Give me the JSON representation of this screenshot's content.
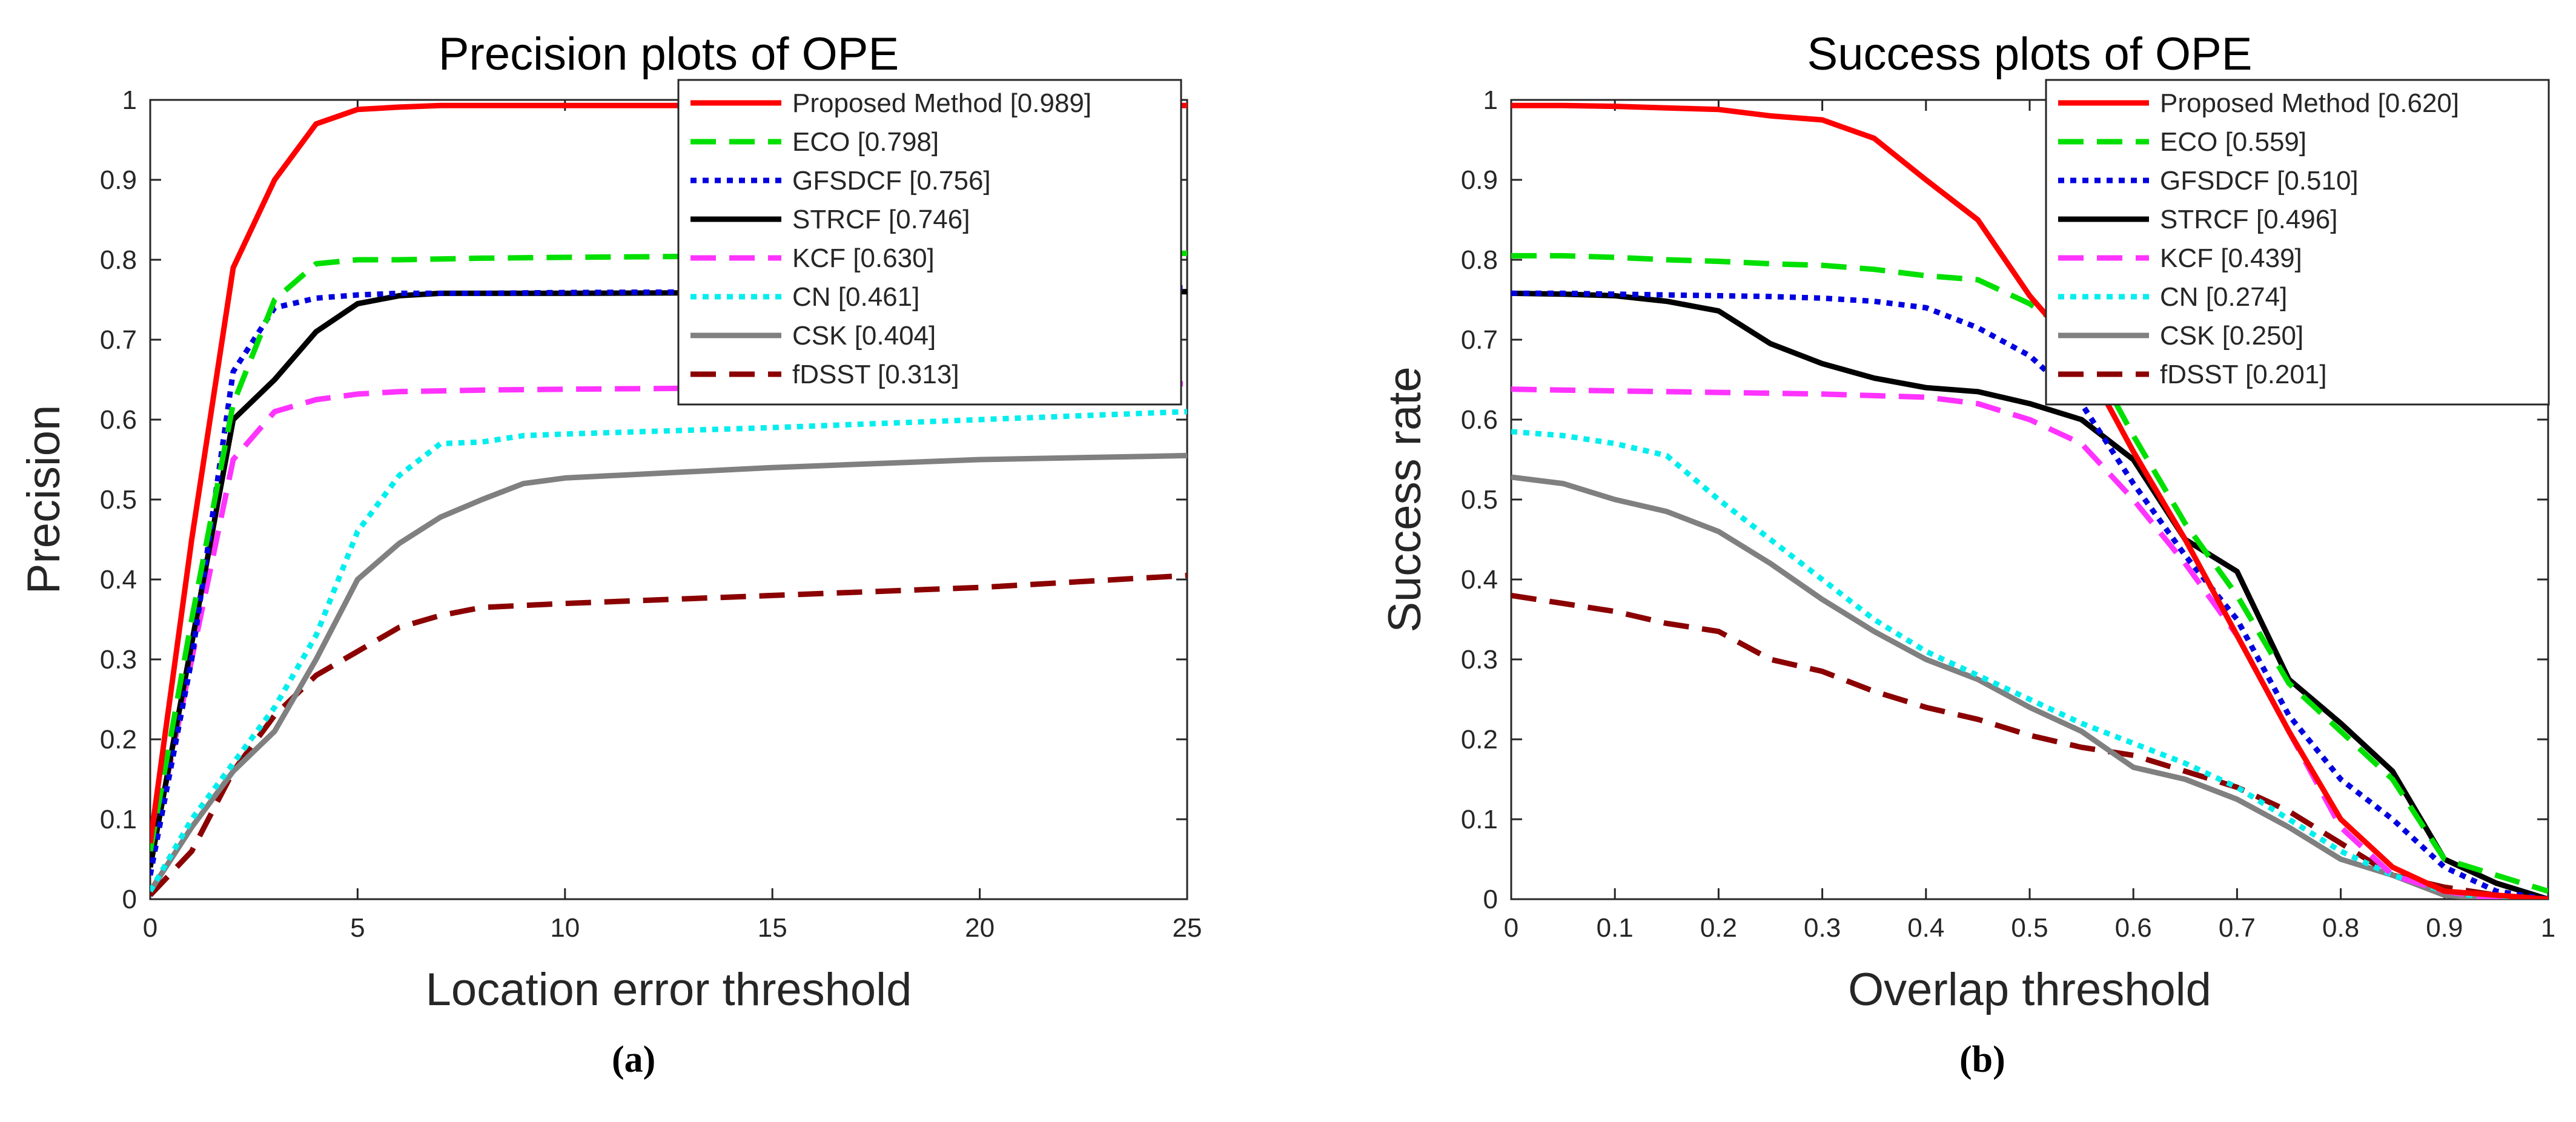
{
  "chart_data": [
    {
      "type": "line",
      "title": "Precision plots of OPE",
      "xlabel": "Location error threshold",
      "ylabel": "Precision",
      "panel_label": "(a)",
      "xlim": [
        0,
        25
      ],
      "ylim": [
        0,
        1
      ],
      "xticks": [
        0,
        5,
        10,
        15,
        20,
        25
      ],
      "yticks": [
        0,
        0.1,
        0.2,
        0.3,
        0.4,
        0.5,
        0.6,
        0.7,
        0.8,
        0.9,
        1
      ],
      "grid": false,
      "legend_position": "top-right",
      "series": [
        {
          "name": "Proposed Method [0.989]",
          "color": "#ff0000",
          "dash": "solid",
          "x": [
            0,
            1,
            2,
            3,
            4,
            5,
            6,
            7,
            8,
            10,
            15,
            20,
            25
          ],
          "y": [
            0.07,
            0.45,
            0.79,
            0.9,
            0.97,
            0.988,
            0.991,
            0.993,
            0.993,
            0.993,
            0.993,
            0.993,
            0.993
          ]
        },
        {
          "name": "ECO [0.798]",
          "color": "#00e000",
          "dash": "dashed",
          "x": [
            0,
            1,
            2,
            3,
            4,
            5,
            6,
            8,
            10,
            15,
            20,
            25
          ],
          "y": [
            0.06,
            0.35,
            0.62,
            0.75,
            0.795,
            0.8,
            0.8,
            0.802,
            0.803,
            0.805,
            0.807,
            0.808
          ]
        },
        {
          "name": "GFSDCF [0.756]",
          "color": "#0000e0",
          "dash": "dotted",
          "x": [
            0,
            1,
            2,
            3,
            4,
            5,
            6,
            8,
            10,
            15,
            20,
            25
          ],
          "y": [
            0.03,
            0.3,
            0.66,
            0.74,
            0.752,
            0.756,
            0.758,
            0.758,
            0.759,
            0.76,
            0.762,
            0.765
          ]
        },
        {
          "name": "STRCF [0.746]",
          "color": "#000000",
          "dash": "solid",
          "x": [
            0,
            1,
            2,
            3,
            4,
            5,
            6,
            7,
            10,
            15,
            20,
            25
          ],
          "y": [
            0.04,
            0.32,
            0.6,
            0.65,
            0.71,
            0.745,
            0.755,
            0.758,
            0.758,
            0.759,
            0.76,
            0.76
          ]
        },
        {
          "name": "KCF [0.630]",
          "color": "#ff33ff",
          "dash": "dashed",
          "x": [
            0,
            1,
            2,
            3,
            4,
            5,
            6,
            8,
            10,
            15,
            20,
            25
          ],
          "y": [
            0.05,
            0.3,
            0.55,
            0.61,
            0.625,
            0.632,
            0.635,
            0.637,
            0.638,
            0.64,
            0.642,
            0.645
          ]
        },
        {
          "name": "CN [0.461]",
          "color": "#00eeee",
          "dash": "dotted",
          "x": [
            0,
            1,
            2,
            3,
            4,
            5,
            6,
            7,
            8,
            9,
            10,
            15,
            20,
            25
          ],
          "y": [
            0.01,
            0.1,
            0.17,
            0.24,
            0.33,
            0.46,
            0.53,
            0.57,
            0.572,
            0.58,
            0.582,
            0.59,
            0.6,
            0.61
          ]
        },
        {
          "name": "CSK [0.404]",
          "color": "#808080",
          "dash": "solid",
          "x": [
            0,
            1,
            2,
            3,
            4,
            5,
            6,
            7,
            8,
            9,
            10,
            15,
            20,
            25
          ],
          "y": [
            0.01,
            0.09,
            0.16,
            0.21,
            0.3,
            0.4,
            0.445,
            0.478,
            0.5,
            0.52,
            0.527,
            0.54,
            0.55,
            0.555
          ]
        },
        {
          "name": "fDSST [0.313]",
          "color": "#8b0000",
          "dash": "dashed",
          "x": [
            0,
            1,
            2,
            3,
            4,
            5,
            6,
            7,
            8,
            10,
            15,
            20,
            25
          ],
          "y": [
            0.005,
            0.06,
            0.16,
            0.23,
            0.28,
            0.31,
            0.34,
            0.355,
            0.365,
            0.37,
            0.38,
            0.39,
            0.405
          ]
        }
      ]
    },
    {
      "type": "line",
      "title": "Success plots of OPE",
      "xlabel": "Overlap threshold",
      "ylabel": "Success rate",
      "panel_label": "(b)",
      "xlim": [
        0,
        1
      ],
      "ylim": [
        0,
        1
      ],
      "xticks": [
        0,
        0.1,
        0.2,
        0.3,
        0.4,
        0.5,
        0.6,
        0.7,
        0.8,
        0.9,
        1
      ],
      "yticks": [
        0,
        0.1,
        0.2,
        0.3,
        0.4,
        0.5,
        0.6,
        0.7,
        0.8,
        0.9,
        1
      ],
      "grid": false,
      "legend_position": "top-right",
      "series": [
        {
          "name": "Proposed Method [0.620]",
          "color": "#ff0000",
          "dash": "solid",
          "x": [
            0,
            0.05,
            0.1,
            0.15,
            0.2,
            0.25,
            0.3,
            0.35,
            0.4,
            0.45,
            0.5,
            0.55,
            0.6,
            0.65,
            0.7,
            0.75,
            0.8,
            0.85,
            0.9,
            0.95,
            1
          ],
          "y": [
            0.993,
            0.993,
            0.992,
            0.99,
            0.988,
            0.98,
            0.975,
            0.952,
            0.9,
            0.85,
            0.755,
            0.68,
            0.56,
            0.45,
            0.33,
            0.21,
            0.1,
            0.04,
            0.01,
            0.005,
            0
          ]
        },
        {
          "name": "ECO [0.559]",
          "color": "#00e000",
          "dash": "dashed",
          "x": [
            0,
            0.05,
            0.1,
            0.15,
            0.2,
            0.25,
            0.3,
            0.35,
            0.4,
            0.45,
            0.5,
            0.55,
            0.6,
            0.65,
            0.7,
            0.75,
            0.8,
            0.85,
            0.9,
            0.95,
            1
          ],
          "y": [
            0.805,
            0.805,
            0.803,
            0.8,
            0.798,
            0.795,
            0.793,
            0.788,
            0.78,
            0.775,
            0.745,
            0.7,
            0.58,
            0.47,
            0.38,
            0.27,
            0.21,
            0.15,
            0.05,
            0.03,
            0.01
          ]
        },
        {
          "name": "GFSDCF [0.510]",
          "color": "#0000e0",
          "dash": "dotted",
          "x": [
            0,
            0.05,
            0.1,
            0.15,
            0.2,
            0.25,
            0.3,
            0.35,
            0.4,
            0.45,
            0.5,
            0.55,
            0.6,
            0.65,
            0.7,
            0.75,
            0.8,
            0.85,
            0.9,
            0.95,
            1
          ],
          "y": [
            0.758,
            0.758,
            0.757,
            0.756,
            0.755,
            0.754,
            0.752,
            0.748,
            0.74,
            0.715,
            0.68,
            0.62,
            0.52,
            0.43,
            0.35,
            0.23,
            0.15,
            0.1,
            0.04,
            0.01,
            0
          ]
        },
        {
          "name": "STRCF [0.496]",
          "color": "#000000",
          "dash": "solid",
          "x": [
            0,
            0.05,
            0.1,
            0.15,
            0.2,
            0.25,
            0.3,
            0.35,
            0.4,
            0.45,
            0.5,
            0.55,
            0.6,
            0.65,
            0.7,
            0.75,
            0.8,
            0.85,
            0.9,
            0.95,
            1
          ],
          "y": [
            0.758,
            0.757,
            0.755,
            0.748,
            0.736,
            0.695,
            0.67,
            0.652,
            0.64,
            0.635,
            0.62,
            0.6,
            0.55,
            0.45,
            0.41,
            0.275,
            0.22,
            0.16,
            0.05,
            0.02,
            0
          ]
        },
        {
          "name": "KCF [0.439]",
          "color": "#ff33ff",
          "dash": "dashed",
          "x": [
            0,
            0.05,
            0.1,
            0.15,
            0.2,
            0.25,
            0.3,
            0.35,
            0.4,
            0.45,
            0.5,
            0.55,
            0.6,
            0.65,
            0.7,
            0.75,
            0.8,
            0.85,
            0.9,
            0.95,
            1
          ],
          "y": [
            0.638,
            0.637,
            0.636,
            0.635,
            0.634,
            0.633,
            0.632,
            0.63,
            0.628,
            0.62,
            0.6,
            0.57,
            0.5,
            0.42,
            0.33,
            0.21,
            0.09,
            0.03,
            0.01,
            0,
            0
          ]
        },
        {
          "name": "CN [0.274]",
          "color": "#00eeee",
          "dash": "dotted",
          "x": [
            0,
            0.05,
            0.1,
            0.15,
            0.2,
            0.25,
            0.3,
            0.35,
            0.4,
            0.45,
            0.5,
            0.55,
            0.6,
            0.65,
            0.7,
            0.75,
            0.8,
            0.85,
            0.9,
            0.95,
            1
          ],
          "y": [
            0.585,
            0.58,
            0.57,
            0.555,
            0.5,
            0.45,
            0.4,
            0.35,
            0.31,
            0.28,
            0.25,
            0.22,
            0.195,
            0.17,
            0.14,
            0.1,
            0.06,
            0.03,
            0.01,
            0,
            0
          ]
        },
        {
          "name": "CSK [0.250]",
          "color": "#808080",
          "dash": "solid",
          "x": [
            0,
            0.05,
            0.1,
            0.15,
            0.2,
            0.25,
            0.3,
            0.35,
            0.4,
            0.45,
            0.5,
            0.55,
            0.6,
            0.65,
            0.7,
            0.75,
            0.8,
            0.85,
            0.9,
            0.95,
            1
          ],
          "y": [
            0.528,
            0.52,
            0.5,
            0.485,
            0.46,
            0.42,
            0.375,
            0.335,
            0.3,
            0.275,
            0.24,
            0.21,
            0.165,
            0.15,
            0.125,
            0.09,
            0.05,
            0.03,
            0.005,
            0,
            0
          ]
        },
        {
          "name": "fDSST [0.201]",
          "color": "#8b0000",
          "dash": "dashed",
          "x": [
            0,
            0.05,
            0.1,
            0.15,
            0.2,
            0.25,
            0.3,
            0.35,
            0.4,
            0.45,
            0.5,
            0.55,
            0.6,
            0.65,
            0.7,
            0.75,
            0.8,
            0.85,
            0.9,
            0.95,
            1
          ],
          "y": [
            0.38,
            0.37,
            0.36,
            0.345,
            0.335,
            0.3,
            0.285,
            0.26,
            0.24,
            0.225,
            0.205,
            0.19,
            0.18,
            0.16,
            0.14,
            0.11,
            0.07,
            0.03,
            0.015,
            0.005,
            0
          ]
        }
      ]
    }
  ]
}
